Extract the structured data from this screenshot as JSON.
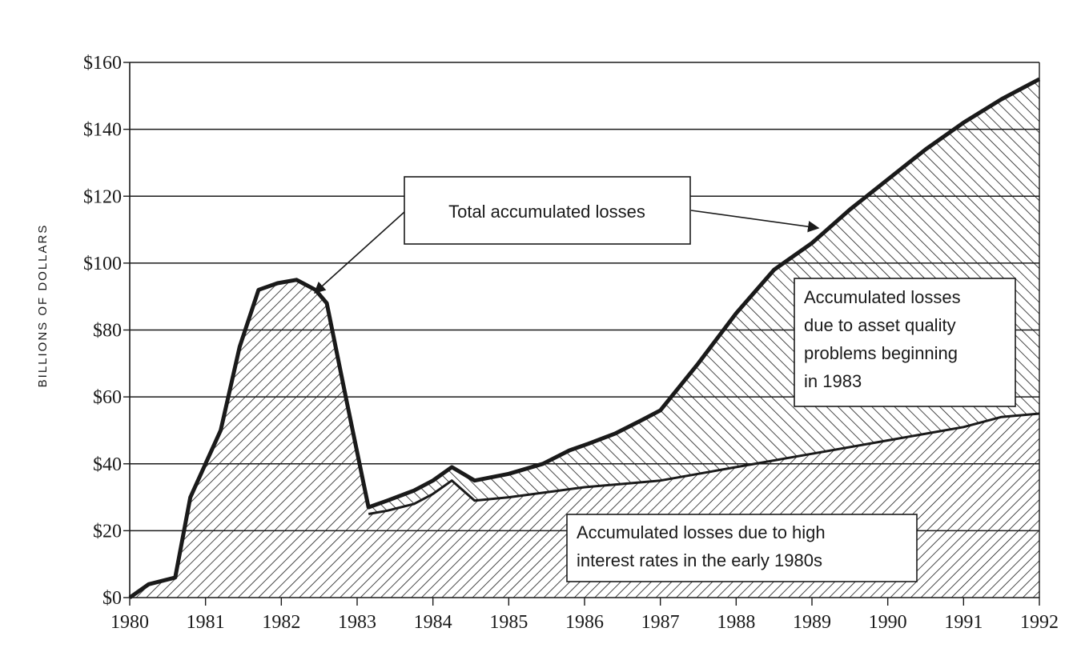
{
  "chart_data": {
    "type": "area",
    "title": "",
    "xlabel": "",
    "ylabel": "BILLIONS OF DOLLARS",
    "xlim": [
      1980,
      1992
    ],
    "ylim": [
      0,
      160
    ],
    "x_ticks": [
      1980,
      1981,
      1982,
      1983,
      1984,
      1985,
      1986,
      1987,
      1988,
      1989,
      1990,
      1991,
      1992
    ],
    "x_tick_labels": [
      "1980",
      "1981",
      "1982",
      "1983",
      "1984",
      "1985",
      "1986",
      "1987",
      "1988",
      "1989",
      "1990",
      "1991",
      "1992"
    ],
    "y_ticks": [
      0,
      20,
      40,
      60,
      80,
      100,
      120,
      140,
      160
    ],
    "y_tick_labels": [
      "$0",
      "$20",
      "$40",
      "$60",
      "$80",
      "$100",
      "$120",
      "$140",
      "$160"
    ],
    "grid": "horizontal",
    "series": [
      {
        "name": "Total accumulated losses",
        "x": [
          1980,
          1980.25,
          1980.6,
          1980.8,
          1981.2,
          1981.45,
          1981.7,
          1981.95,
          1982.2,
          1982.45,
          1982.6,
          1982.85,
          1983.15,
          1983.4,
          1983.75,
          1984.0,
          1984.25,
          1984.55,
          1985.0,
          1985.45,
          1985.8,
          1986.05,
          1986.4,
          1986.75,
          1987.0,
          1987.5,
          1988.0,
          1988.5,
          1989.0,
          1989.5,
          1990.0,
          1990.5,
          1991.0,
          1991.5,
          1992.0
        ],
        "values": [
          0,
          4,
          6,
          30,
          50,
          75,
          92,
          94,
          95,
          92,
          88,
          60,
          27,
          29,
          32,
          35,
          39,
          35,
          37,
          40,
          44,
          46,
          49,
          53,
          56,
          70,
          85,
          98,
          106,
          116,
          125,
          134,
          142,
          149,
          155
        ]
      },
      {
        "name": "Accumulated losses due to high interest rates in the early 1980s",
        "x": [
          1983.15,
          1983.4,
          1983.75,
          1984.0,
          1984.25,
          1984.55,
          1985.0,
          1986.0,
          1987.0,
          1988.0,
          1989.0,
          1990.0,
          1991.0,
          1991.5,
          1992.0
        ],
        "values": [
          25,
          26,
          28,
          31,
          35,
          29,
          30,
          33,
          35,
          39,
          43,
          47,
          51,
          54,
          55
        ]
      }
    ],
    "annotations": [
      "Total accumulated losses",
      "Accumulated losses due to asset quality problems beginning in 1983",
      "Accumulated losses due to high interest rates in the early 1980s"
    ],
    "colors": {
      "line": "#1a1a1a",
      "grid": "#1a1a1a",
      "fill": "#ffffff"
    }
  },
  "annotations": {
    "total": "Total accumulated losses",
    "asset_quality": [
      "Accumulated losses",
      "due to asset quality",
      "problems beginning",
      "in 1983"
    ],
    "interest": [
      "Accumulated losses due to high",
      "interest rates in the early 1980s"
    ]
  }
}
